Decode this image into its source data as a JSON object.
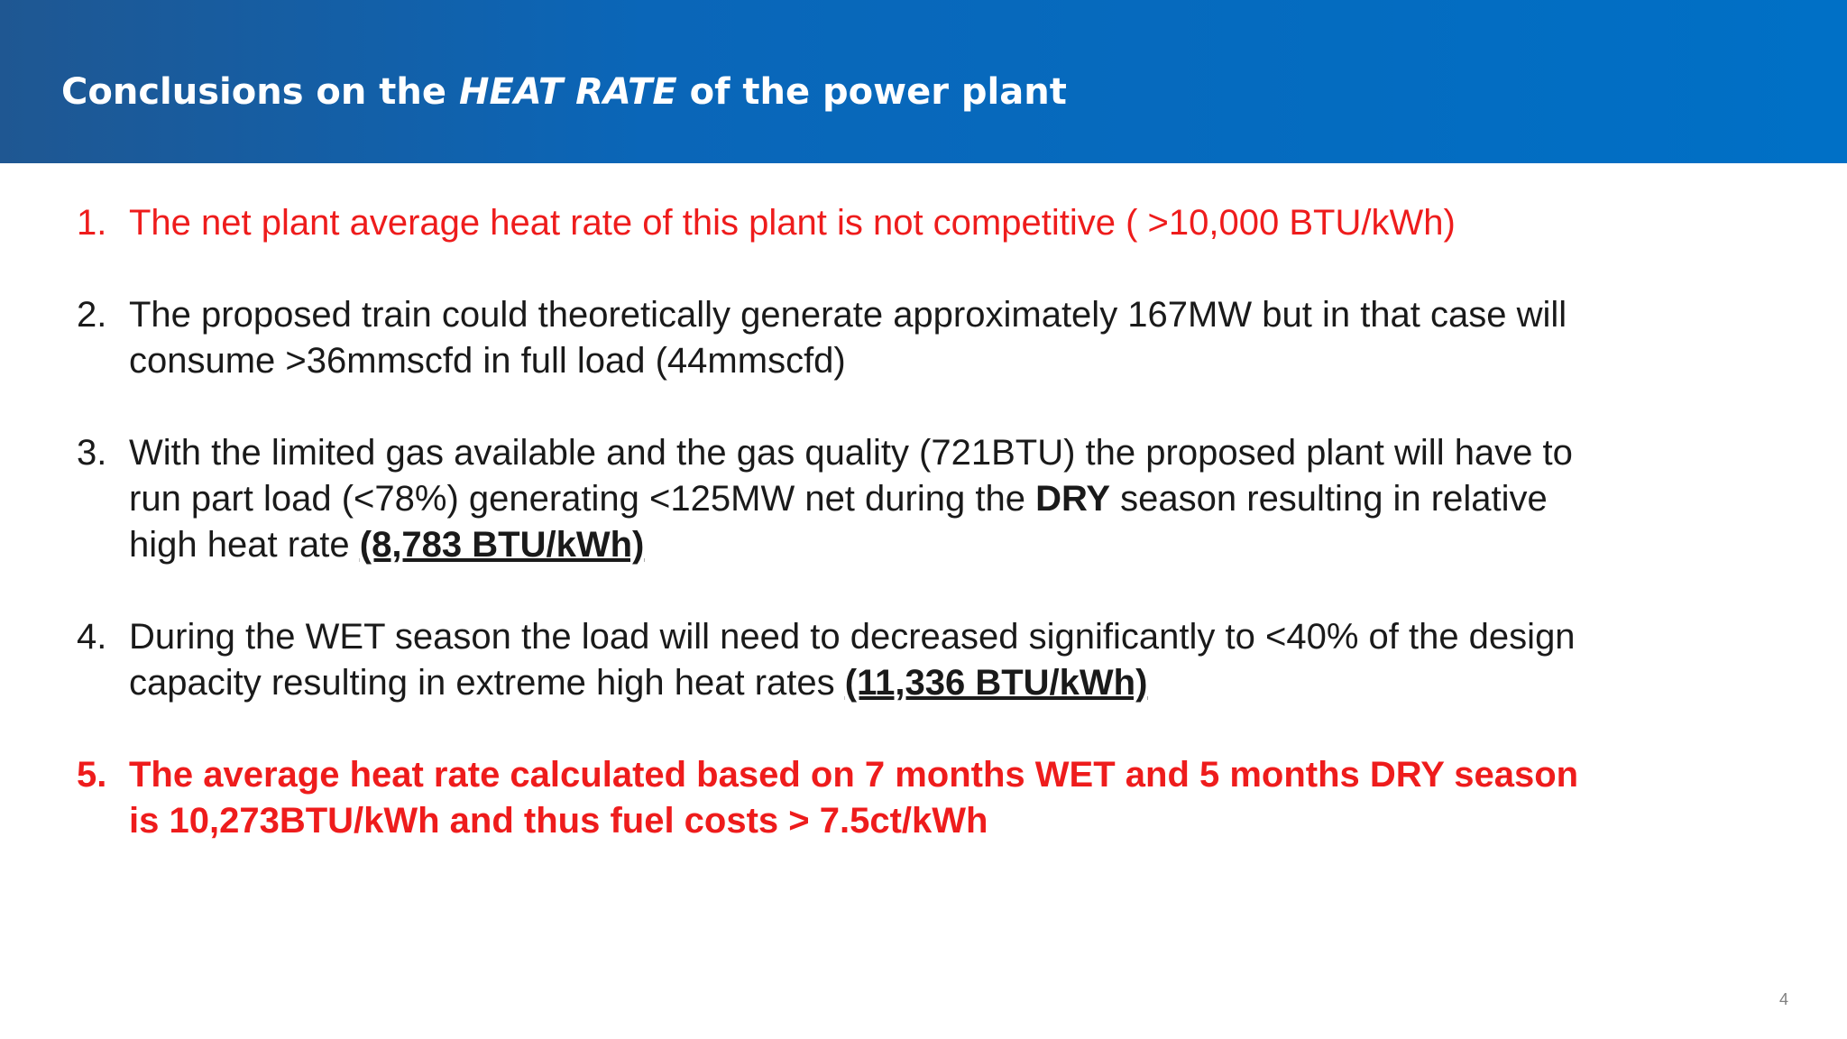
{
  "slide": {
    "title_pre": "Conclusions on the ",
    "title_em": "HEAT RATE",
    "title_post": " of the power plant",
    "page_number": "4",
    "accent_color": "#0070c6",
    "highlight_color": "#ee1c1c"
  },
  "items": [
    {
      "num": "1.",
      "text": "The net plant average heat rate of this plant is not competitive ( >10,000 BTU/kWh)"
    },
    {
      "num": "2.",
      "line1": "The proposed train could theoretically generate approximately 167MW but in that case will",
      "line2": "consume >36mmscfd in full load (44mmscfd)"
    },
    {
      "num": "3.",
      "line1": "With the limited gas available and the gas quality (721BTU) the proposed plant will have to",
      "line2_pre": "run part load (<78%) generating <125MW net  during the ",
      "line2_bold": "DRY",
      "line2_post": " season resulting in relative",
      "line3_pre": "high heat rate ",
      "line3_emph": "(8,783 BTU/kWh)"
    },
    {
      "num": "4.",
      "line1": "During the WET season the load will need to decreased significantly to <40% of the design",
      "line2_pre": "capacity resulting in extreme high heat rates ",
      "line2_emph": "(11,336 BTU/kWh)"
    },
    {
      "num": "5.",
      "line1": "The average heat rate calculated based on 7 months WET and 5 months DRY season",
      "line2": "is 10,273BTU/kWh and thus fuel costs > 7.5ct/kWh"
    }
  ]
}
